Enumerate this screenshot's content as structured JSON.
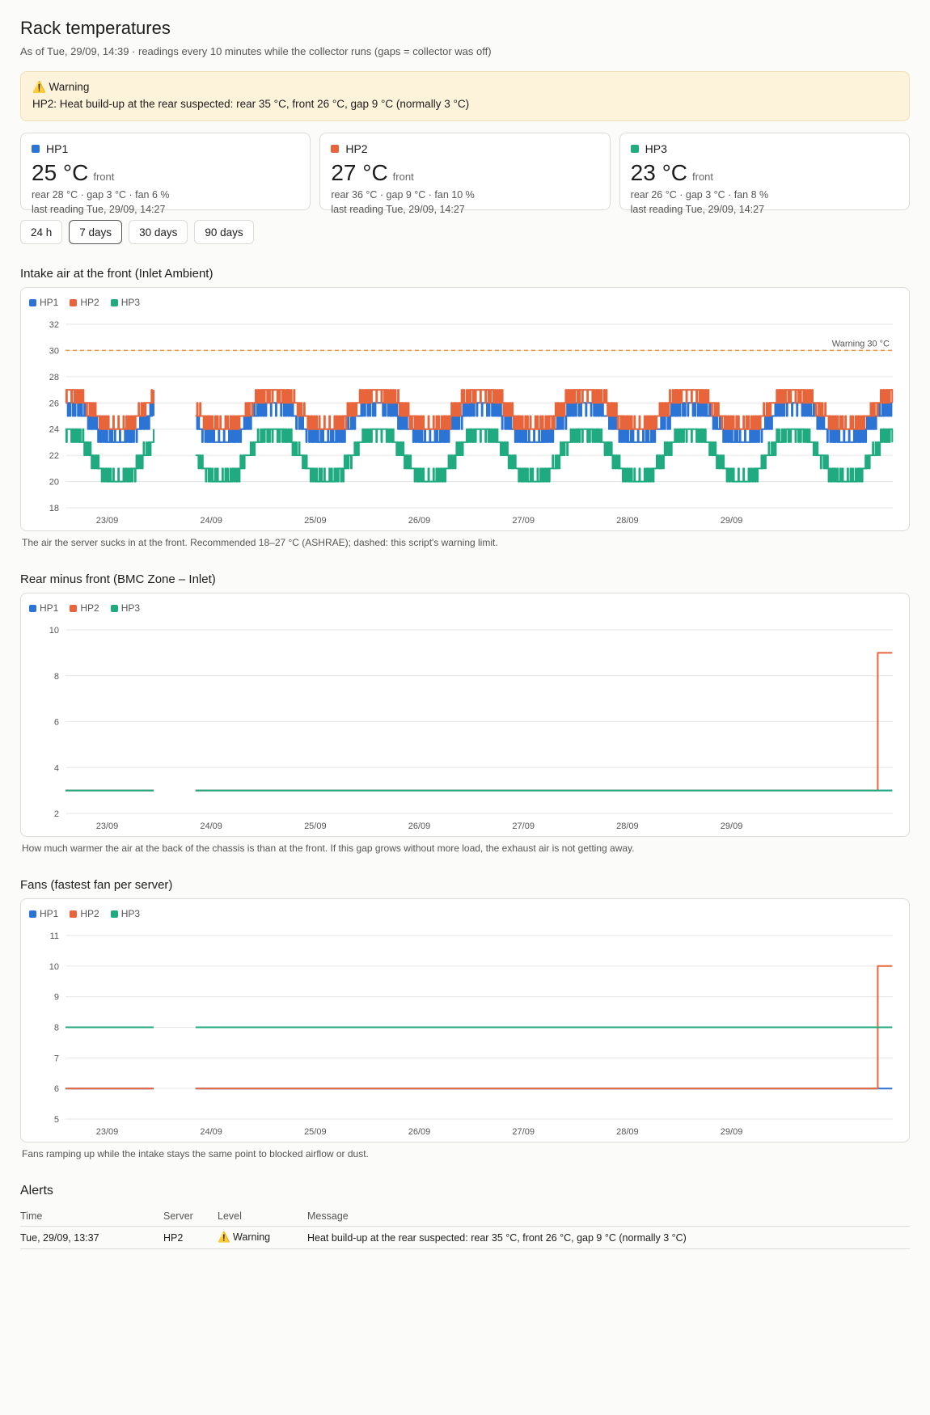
{
  "header": {
    "title": "Rack temperatures",
    "subtitle": "As of Tue, 29/09, 14:39 · readings every 10 minutes while the collector runs (gaps = collector was off)"
  },
  "warning": {
    "icon": "warning-icon",
    "title": "⚠️ Warning",
    "message": "HP2: Heat build-up at the rear suspected: rear 35 °C, front 26 °C, gap 9 °C (normally 3 °C)"
  },
  "colors": {
    "HP1": "#2b73d4",
    "HP2": "#e8643a",
    "HP3": "#1faa7f",
    "threshold": "#e39a4c"
  },
  "servers": [
    {
      "name": "HP1",
      "temp": "25 °C",
      "front_label": "front",
      "detail": "rear 28 °C · gap 3 °C · fan 6 %",
      "last": "last reading Tue, 29/09, 14:27"
    },
    {
      "name": "HP2",
      "temp": "27 °C",
      "front_label": "front",
      "detail": "rear 36 °C · gap 9 °C · fan 10 %",
      "last": "last reading Tue, 29/09, 14:27"
    },
    {
      "name": "HP3",
      "temp": "23 °C",
      "front_label": "front",
      "detail": "rear 26 °C · gap 3 °C · fan 8 %",
      "last": "last reading Tue, 29/09, 14:27"
    }
  ],
  "ranges": {
    "options": [
      "24 h",
      "7 days",
      "30 days",
      "90 days"
    ],
    "selected": "7 days"
  },
  "sections": {
    "intake": {
      "title": "Intake air at the front (Inlet Ambient)",
      "caption": "The air the server sucks in at the front. Recommended 18–27 °C (ASHRAE); dashed: this script's warning limit."
    },
    "gap": {
      "title": "Rear minus front (BMC Zone – Inlet)",
      "caption": "How much warmer the air at the back of the chassis is than at the front. If this gap grows without more load, the exhaust air is not getting away."
    },
    "fans": {
      "title": "Fans (fastest fan per server)",
      "caption": "Fans ramping up while the intake stays the same point to blocked airflow or dust."
    }
  },
  "chart_data": [
    {
      "type": "line",
      "x_ticks": [
        "23/09",
        "24/09",
        "25/09",
        "26/09",
        "27/09",
        "28/09",
        "29/09"
      ],
      "x_range_days": [
        -0.4,
        7.55
      ],
      "gap_days": [
        0.45,
        0.85
      ],
      "ylim": [
        18,
        32
      ],
      "yticks": [
        18,
        20,
        22,
        24,
        26,
        28,
        30,
        32
      ],
      "threshold": {
        "value": 30,
        "label": "Warning 30 °C"
      },
      "series": [
        {
          "name": "HP1",
          "kind": "daily",
          "min": 23,
          "max": 26
        },
        {
          "name": "HP2",
          "kind": "daily",
          "min": 24,
          "max": 27
        },
        {
          "name": "HP3",
          "kind": "daily",
          "min": 20,
          "max": 24
        }
      ]
    },
    {
      "type": "line",
      "x_ticks": [
        "23/09",
        "24/09",
        "25/09",
        "26/09",
        "27/09",
        "28/09",
        "29/09"
      ],
      "x_range_days": [
        -0.4,
        7.55
      ],
      "gap_days": [
        0.45,
        0.85
      ],
      "ylim": [
        2,
        10
      ],
      "yticks": [
        2,
        4,
        6,
        8,
        10
      ],
      "series": [
        {
          "name": "HP1",
          "kind": "step",
          "base": 3,
          "step_at": null,
          "after": 3
        },
        {
          "name": "HP2",
          "kind": "step",
          "base": 3,
          "step_at": 7.4,
          "after": 9
        },
        {
          "name": "HP3",
          "kind": "step",
          "base": 3,
          "step_at": null,
          "after": 3
        }
      ]
    },
    {
      "type": "line",
      "x_ticks": [
        "23/09",
        "24/09",
        "25/09",
        "26/09",
        "27/09",
        "28/09",
        "29/09"
      ],
      "x_range_days": [
        -0.4,
        7.55
      ],
      "gap_days": [
        0.45,
        0.85
      ],
      "ylim": [
        5,
        11
      ],
      "yticks": [
        5,
        6,
        7,
        8,
        9,
        10,
        11
      ],
      "series": [
        {
          "name": "HP1",
          "kind": "step",
          "base": 6,
          "step_at": null,
          "after": 6
        },
        {
          "name": "HP2",
          "kind": "step",
          "base": 6,
          "step_at": 7.4,
          "after": 10
        },
        {
          "name": "HP3",
          "kind": "step",
          "base": 8,
          "step_at": null,
          "after": 8
        }
      ]
    }
  ],
  "alerts": {
    "title": "Alerts",
    "columns": [
      "Time",
      "Server",
      "Level",
      "Message"
    ],
    "rows": [
      {
        "time": "Tue, 29/09, 13:37",
        "server": "HP2",
        "level": "⚠️ Warning",
        "message": "Heat build-up at the rear suspected: rear 35 °C, front 26 °C, gap 9 °C (normally 3 °C)"
      }
    ]
  }
}
